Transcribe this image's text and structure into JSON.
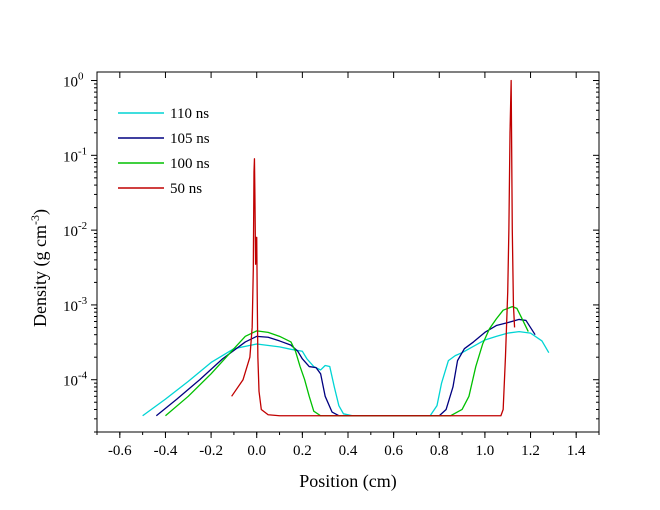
{
  "chart_data": {
    "type": "line",
    "title": "",
    "xlabel": "Position (cm)",
    "ylabel": "Density (g cm-3)",
    "ylabel_base": "Density (g cm",
    "ylabel_exp": "-3",
    "ylabel_close": ")",
    "yscale": "log",
    "xlim": [
      -0.7,
      1.5
    ],
    "ylim": [
      2e-05,
      1.3
    ],
    "grid": false,
    "legend_position": "top-left",
    "x_ticks": [
      -0.6,
      -0.4,
      -0.2,
      0.0,
      0.2,
      0.4,
      0.6,
      0.8,
      1.0,
      1.2,
      1.4
    ],
    "x_tick_labels": [
      "-0.6",
      "-0.4",
      "-0.2",
      "0.0",
      "0.2",
      "0.4",
      "0.6",
      "0.8",
      "1.0",
      "1.2",
      "1.4"
    ],
    "y_ticks": [
      {
        "value": 0.0001,
        "base": "10",
        "exp": "-4"
      },
      {
        "value": 0.001,
        "base": "10",
        "exp": "-3"
      },
      {
        "value": 0.01,
        "base": "10",
        "exp": "-2"
      },
      {
        "value": 0.1,
        "base": "10",
        "exp": "-1"
      },
      {
        "value": 1,
        "base": "10",
        "exp": "0"
      }
    ],
    "series": [
      {
        "name": "110 ns",
        "color": "#00d4d4",
        "points": [
          [
            -0.5,
            3.3e-05
          ],
          [
            -0.4,
            5.5e-05
          ],
          [
            -0.3,
            9.5e-05
          ],
          [
            -0.2,
            0.00017
          ],
          [
            -0.1,
            0.00026
          ],
          [
            0.0,
            0.0003
          ],
          [
            0.1,
            0.000275
          ],
          [
            0.15,
            0.000255
          ],
          [
            0.2,
            0.00024
          ],
          [
            0.22,
            0.00019
          ],
          [
            0.25,
            0.00015
          ],
          [
            0.28,
            0.000135
          ],
          [
            0.3,
            0.000155
          ],
          [
            0.32,
            0.00015
          ],
          [
            0.34,
            8e-05
          ],
          [
            0.36,
            4.5e-05
          ],
          [
            0.38,
            3.5e-05
          ],
          [
            0.42,
            3.3e-05
          ],
          [
            0.6,
            3.3e-05
          ],
          [
            0.76,
            3.3e-05
          ],
          [
            0.79,
            4.5e-05
          ],
          [
            0.81,
            9e-05
          ],
          [
            0.84,
            0.00018
          ],
          [
            0.87,
            0.00021
          ],
          [
            0.9,
            0.00023
          ],
          [
            0.95,
            0.00028
          ],
          [
            1.0,
            0.00034
          ],
          [
            1.05,
            0.00038
          ],
          [
            1.1,
            0.00042
          ],
          [
            1.15,
            0.00044
          ],
          [
            1.2,
            0.00042
          ],
          [
            1.25,
            0.00033
          ],
          [
            1.28,
            0.00023
          ]
        ]
      },
      {
        "name": "105 ns",
        "color": "#000080",
        "points": [
          [
            -0.44,
            3.3e-05
          ],
          [
            -0.35,
            5.5e-05
          ],
          [
            -0.25,
            0.0001
          ],
          [
            -0.15,
            0.00019
          ],
          [
            -0.05,
            0.00032
          ],
          [
            0.0,
            0.00038
          ],
          [
            0.05,
            0.00037
          ],
          [
            0.1,
            0.00033
          ],
          [
            0.15,
            0.00029
          ],
          [
            0.18,
            0.00024
          ],
          [
            0.2,
            0.00019
          ],
          [
            0.23,
            0.00015
          ],
          [
            0.26,
            0.000145
          ],
          [
            0.28,
            0.00012
          ],
          [
            0.3,
            6e-05
          ],
          [
            0.33,
            3.7e-05
          ],
          [
            0.36,
            3.3e-05
          ],
          [
            0.6,
            3.3e-05
          ],
          [
            0.8,
            3.3e-05
          ],
          [
            0.83,
            4e-05
          ],
          [
            0.86,
            8e-05
          ],
          [
            0.88,
            0.00018
          ],
          [
            0.91,
            0.00026
          ],
          [
            0.95,
            0.00032
          ],
          [
            1.0,
            0.00043
          ],
          [
            1.05,
            0.00053
          ],
          [
            1.1,
            0.00058
          ],
          [
            1.15,
            0.00064
          ],
          [
            1.18,
            0.00062
          ],
          [
            1.22,
            0.0004
          ]
        ]
      },
      {
        "name": "100 ns",
        "color": "#00c000",
        "points": [
          [
            -0.4,
            3.3e-05
          ],
          [
            -0.3,
            6e-05
          ],
          [
            -0.2,
            0.00012
          ],
          [
            -0.1,
            0.00026
          ],
          [
            -0.05,
            0.00038
          ],
          [
            0.0,
            0.00045
          ],
          [
            0.05,
            0.00043
          ],
          [
            0.1,
            0.00038
          ],
          [
            0.15,
            0.00032
          ],
          [
            0.17,
            0.00024
          ],
          [
            0.19,
            0.00015
          ],
          [
            0.21,
            0.0001
          ],
          [
            0.23,
            6e-05
          ],
          [
            0.25,
            3.8e-05
          ],
          [
            0.28,
            3.3e-05
          ],
          [
            0.6,
            3.3e-05
          ],
          [
            0.85,
            3.3e-05
          ],
          [
            0.9,
            4e-05
          ],
          [
            0.93,
            6e-05
          ],
          [
            0.96,
            0.00015
          ],
          [
            0.99,
            0.0003
          ],
          [
            1.02,
            0.00048
          ],
          [
            1.05,
            0.00065
          ],
          [
            1.08,
            0.00085
          ],
          [
            1.12,
            0.00095
          ],
          [
            1.14,
            0.0009
          ],
          [
            1.16,
            0.00068
          ],
          [
            1.19,
            0.00044
          ]
        ]
      },
      {
        "name": "50 ns",
        "color": "#c00000",
        "points": [
          [
            -0.11,
            6e-05
          ],
          [
            -0.06,
            0.0001
          ],
          [
            -0.03,
            0.0002
          ],
          [
            -0.02,
            0.0005
          ],
          [
            -0.015,
            0.003
          ],
          [
            -0.012,
            0.06
          ],
          [
            -0.01,
            0.09
          ],
          [
            -0.008,
            0.03
          ],
          [
            -0.005,
            0.0035
          ],
          [
            -0.003,
            0.008
          ],
          [
            -0.001,
            0.0045
          ],
          [
            0.0,
            0.008
          ],
          [
            0.002,
            0.0015
          ],
          [
            0.005,
            0.0002
          ],
          [
            0.01,
            7e-05
          ],
          [
            0.02,
            4e-05
          ],
          [
            0.05,
            3.4e-05
          ],
          [
            0.1,
            3.3e-05
          ],
          [
            0.5,
            3.3e-05
          ],
          [
            1.0,
            3.3e-05
          ],
          [
            1.07,
            3.3e-05
          ],
          [
            1.08,
            4e-05
          ],
          [
            1.09,
            0.0002
          ],
          [
            1.1,
            0.0015
          ],
          [
            1.105,
            0.01
          ],
          [
            1.11,
            0.2
          ],
          [
            1.115,
            1.0
          ],
          [
            1.12,
            0.01
          ],
          [
            1.125,
            0.001
          ],
          [
            1.13,
            0.0005
          ]
        ]
      }
    ]
  }
}
